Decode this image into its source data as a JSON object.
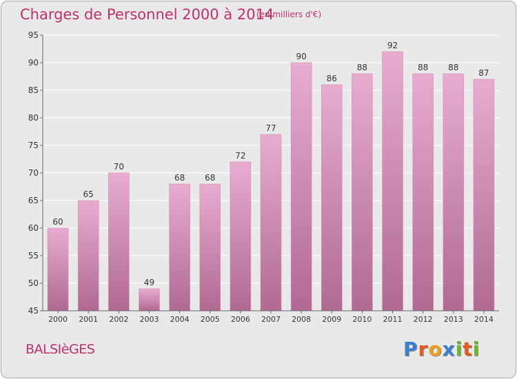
{
  "header": {
    "title": "Charges de Personnel 2000 à 2014",
    "subtitle": "(en milliers d'€)"
  },
  "footer": {
    "place_name": "BALSIèGES",
    "logo": {
      "text": "Proxiti",
      "letters": [
        {
          "char": "P",
          "color": "#3a7fd0"
        },
        {
          "char": "r",
          "color": "#e85a1c"
        },
        {
          "char": "o",
          "color": "#f0a020"
        },
        {
          "char": "x",
          "color": "#3a7fd0"
        },
        {
          "char": "i",
          "color": "#6ab82c"
        },
        {
          "char": "t",
          "color": "#e85a1c"
        },
        {
          "char": "i",
          "color": "#6ab82c"
        }
      ]
    }
  },
  "colors": {
    "accent": "#c0306a",
    "bar_top": "#e8acd0",
    "bar_bottom": "#b06a92",
    "plot_background": "#e9e9e9",
    "grid": "#ffffff"
  },
  "chart_data": {
    "type": "bar",
    "categories": [
      "2000",
      "2001",
      "2002",
      "2003",
      "2004",
      "2005",
      "2006",
      "2007",
      "2008",
      "2009",
      "2010",
      "2011",
      "2012",
      "2013",
      "2014"
    ],
    "values": [
      60,
      65,
      70,
      49,
      68,
      68,
      72,
      77,
      90,
      86,
      88,
      92,
      88,
      88,
      87
    ],
    "ylim": [
      45,
      95
    ],
    "yticks": [
      45,
      50,
      55,
      60,
      65,
      70,
      75,
      80,
      85,
      90,
      95
    ],
    "grid": true,
    "data_labels": true
  }
}
